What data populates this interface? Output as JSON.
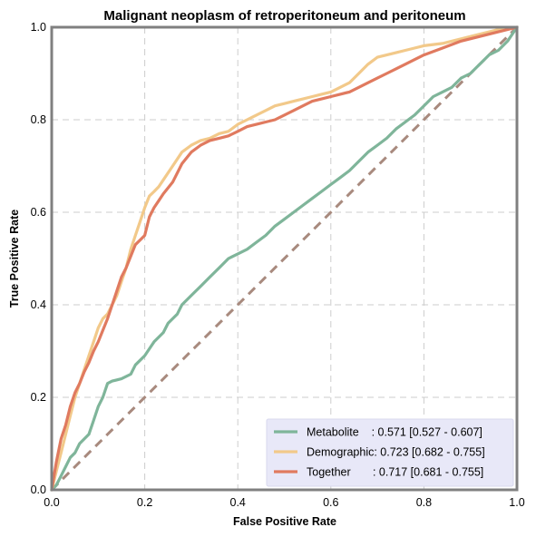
{
  "chart_data": {
    "type": "line",
    "title": "Malignant neoplasm of retroperitoneum and peritoneum",
    "xlabel": "False Positive Rate",
    "ylabel": "True Positive Rate",
    "xlim": [
      0,
      1
    ],
    "ylim": [
      0,
      1
    ],
    "xticks": [
      "0.0",
      "0.2",
      "0.4",
      "0.6",
      "0.8",
      "1.0"
    ],
    "yticks": [
      "0.0",
      "0.2",
      "0.4",
      "0.6",
      "0.8",
      "1.0"
    ],
    "grid": true,
    "legend_position": "lower-right",
    "legend_background": "#e8e8f8",
    "series": [
      {
        "name": "Metabolite",
        "auc_text": "    : 0.571 [0.527 - 0.607]",
        "color": "#7fb59a",
        "x": [
          0,
          0.01,
          0.02,
          0.03,
          0.04,
          0.05,
          0.06,
          0.08,
          0.09,
          0.1,
          0.11,
          0.12,
          0.13,
          0.15,
          0.17,
          0.18,
          0.19,
          0.2,
          0.22,
          0.24,
          0.25,
          0.27,
          0.28,
          0.3,
          0.32,
          0.34,
          0.36,
          0.38,
          0.4,
          0.42,
          0.44,
          0.46,
          0.48,
          0.5,
          0.52,
          0.54,
          0.56,
          0.58,
          0.6,
          0.62,
          0.64,
          0.66,
          0.68,
          0.7,
          0.72,
          0.74,
          0.76,
          0.78,
          0.8,
          0.82,
          0.84,
          0.86,
          0.88,
          0.9,
          0.92,
          0.94,
          0.96,
          0.98,
          1.0
        ],
        "y": [
          0,
          0.01,
          0.03,
          0.05,
          0.07,
          0.08,
          0.1,
          0.12,
          0.15,
          0.18,
          0.2,
          0.23,
          0.235,
          0.24,
          0.25,
          0.27,
          0.28,
          0.29,
          0.32,
          0.34,
          0.36,
          0.38,
          0.4,
          0.42,
          0.44,
          0.46,
          0.48,
          0.5,
          0.51,
          0.52,
          0.535,
          0.55,
          0.57,
          0.585,
          0.6,
          0.615,
          0.63,
          0.645,
          0.66,
          0.675,
          0.69,
          0.71,
          0.73,
          0.745,
          0.76,
          0.78,
          0.795,
          0.81,
          0.83,
          0.85,
          0.86,
          0.87,
          0.89,
          0.9,
          0.92,
          0.94,
          0.95,
          0.97,
          1.0
        ]
      },
      {
        "name": "Demographic:",
        "auc_text": " 0.723 [0.682 - 0.755]",
        "color": "#f2c98a",
        "x": [
          0,
          0.01,
          0.02,
          0.03,
          0.04,
          0.05,
          0.06,
          0.07,
          0.08,
          0.09,
          0.1,
          0.11,
          0.12,
          0.13,
          0.14,
          0.15,
          0.16,
          0.17,
          0.18,
          0.19,
          0.2,
          0.21,
          0.22,
          0.23,
          0.24,
          0.26,
          0.28,
          0.3,
          0.32,
          0.34,
          0.36,
          0.38,
          0.4,
          0.42,
          0.44,
          0.46,
          0.48,
          0.5,
          0.52,
          0.54,
          0.56,
          0.58,
          0.6,
          0.62,
          0.64,
          0.66,
          0.68,
          0.7,
          0.72,
          0.74,
          0.76,
          0.78,
          0.8,
          0.84,
          0.88,
          0.92,
          0.96,
          1.0
        ],
        "y": [
          0,
          0.04,
          0.08,
          0.12,
          0.16,
          0.2,
          0.23,
          0.26,
          0.29,
          0.32,
          0.35,
          0.37,
          0.38,
          0.4,
          0.42,
          0.45,
          0.48,
          0.52,
          0.55,
          0.58,
          0.61,
          0.635,
          0.645,
          0.655,
          0.67,
          0.7,
          0.73,
          0.745,
          0.755,
          0.76,
          0.77,
          0.775,
          0.79,
          0.8,
          0.81,
          0.82,
          0.83,
          0.835,
          0.84,
          0.845,
          0.85,
          0.855,
          0.86,
          0.87,
          0.88,
          0.9,
          0.92,
          0.935,
          0.94,
          0.945,
          0.95,
          0.955,
          0.96,
          0.965,
          0.975,
          0.985,
          0.995,
          1.0
        ]
      },
      {
        "name": "Together",
        "auc_text": "       : 0.717 [0.681 - 0.755]",
        "color": "#e07a5f",
        "x": [
          0,
          0.01,
          0.02,
          0.03,
          0.04,
          0.05,
          0.06,
          0.07,
          0.08,
          0.09,
          0.1,
          0.11,
          0.12,
          0.13,
          0.14,
          0.15,
          0.16,
          0.17,
          0.18,
          0.19,
          0.2,
          0.21,
          0.22,
          0.23,
          0.24,
          0.26,
          0.28,
          0.3,
          0.32,
          0.34,
          0.36,
          0.38,
          0.4,
          0.42,
          0.44,
          0.46,
          0.48,
          0.5,
          0.52,
          0.54,
          0.56,
          0.58,
          0.6,
          0.62,
          0.64,
          0.66,
          0.68,
          0.7,
          0.72,
          0.74,
          0.76,
          0.78,
          0.8,
          0.84,
          0.88,
          0.92,
          0.96,
          1.0
        ],
        "y": [
          0,
          0.06,
          0.11,
          0.14,
          0.18,
          0.21,
          0.23,
          0.255,
          0.275,
          0.3,
          0.32,
          0.345,
          0.37,
          0.4,
          0.43,
          0.46,
          0.48,
          0.505,
          0.53,
          0.54,
          0.55,
          0.59,
          0.61,
          0.625,
          0.64,
          0.665,
          0.705,
          0.73,
          0.745,
          0.755,
          0.76,
          0.765,
          0.775,
          0.785,
          0.79,
          0.795,
          0.8,
          0.81,
          0.82,
          0.83,
          0.84,
          0.845,
          0.85,
          0.855,
          0.86,
          0.87,
          0.88,
          0.89,
          0.9,
          0.91,
          0.92,
          0.93,
          0.94,
          0.955,
          0.97,
          0.98,
          0.99,
          1.0
        ]
      },
      {
        "name": "",
        "color": "#a88a7e",
        "dashed": true,
        "x": [
          0,
          1
        ],
        "y": [
          0,
          1
        ]
      }
    ]
  }
}
